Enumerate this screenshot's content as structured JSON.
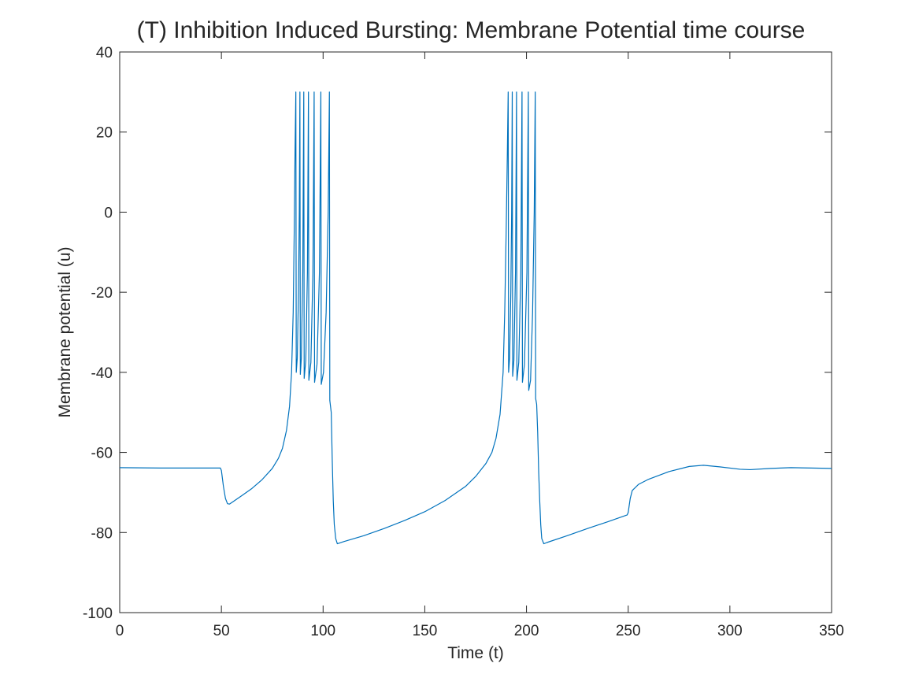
{
  "chart_data": {
    "type": "line",
    "title": "(T) Inhibition Induced Bursting: Membrane Potential time course",
    "xlabel": "Time (t)",
    "ylabel": "Membrane potential (u)",
    "xlim": [
      0,
      350
    ],
    "ylim": [
      -100,
      40
    ],
    "x_ticks": [
      0,
      50,
      100,
      150,
      200,
      250,
      300,
      350
    ],
    "y_ticks": [
      -100,
      -80,
      -60,
      -40,
      -20,
      0,
      20,
      40
    ],
    "grid": false,
    "legend": "none",
    "series": [
      {
        "color": "#0072BD",
        "points": [
          [
            0,
            -63.8
          ],
          [
            20,
            -63.9
          ],
          [
            40,
            -63.9
          ],
          [
            49.5,
            -63.9
          ],
          [
            50,
            -64.5
          ],
          [
            51,
            -68.5
          ],
          [
            52,
            -71.5
          ],
          [
            53,
            -72.8
          ],
          [
            54,
            -72.9
          ],
          [
            56,
            -72.2
          ],
          [
            60,
            -70.8
          ],
          [
            65,
            -69.0
          ],
          [
            70,
            -66.8
          ],
          [
            75,
            -64.0
          ],
          [
            78,
            -61.5
          ],
          [
            80,
            -59.0
          ],
          [
            82,
            -54.5
          ],
          [
            83.5,
            -48.5
          ],
          [
            84.5,
            -40.0
          ],
          [
            85.3,
            -25.0
          ],
          [
            85.8,
            -5.0
          ],
          [
            86.2,
            15.0
          ],
          [
            86.6,
            30.0
          ],
          [
            86.8,
            -40.0
          ],
          [
            87.3,
            -36.5
          ],
          [
            87.9,
            -20.0
          ],
          [
            88.3,
            0.0
          ],
          [
            88.6,
            30.0
          ],
          [
            88.8,
            -40.5
          ],
          [
            89.3,
            -36.5
          ],
          [
            90.0,
            -15.0
          ],
          [
            90.5,
            30.0
          ],
          [
            90.7,
            -41.5
          ],
          [
            91.5,
            -37.0
          ],
          [
            92.3,
            -15.0
          ],
          [
            92.8,
            30.0
          ],
          [
            93.0,
            -42.0
          ],
          [
            94.0,
            -37.5
          ],
          [
            95.0,
            -15.0
          ],
          [
            95.6,
            30.0
          ],
          [
            95.8,
            -42.5
          ],
          [
            97.0,
            -38.0
          ],
          [
            98.2,
            -15.0
          ],
          [
            98.9,
            30.0
          ],
          [
            99.1,
            -43.0
          ],
          [
            100.2,
            -40.0
          ],
          [
            101.5,
            -25.0
          ],
          [
            102.5,
            0.0
          ],
          [
            103.1,
            30.0
          ],
          [
            103.3,
            -47.0
          ],
          [
            104.0,
            -50.0
          ],
          [
            104.5,
            -62.0
          ],
          [
            105.0,
            -72.0
          ],
          [
            105.5,
            -78.0
          ],
          [
            106.2,
            -81.5
          ],
          [
            107,
            -82.8
          ],
          [
            110,
            -82.3
          ],
          [
            120,
            -80.8
          ],
          [
            130,
            -79.0
          ],
          [
            140,
            -77.0
          ],
          [
            150,
            -74.8
          ],
          [
            160,
            -72.0
          ],
          [
            170,
            -68.5
          ],
          [
            175,
            -66.0
          ],
          [
            180,
            -62.8
          ],
          [
            183,
            -60.0
          ],
          [
            185,
            -56.5
          ],
          [
            187,
            -50.5
          ],
          [
            188.5,
            -40.0
          ],
          [
            189.3,
            -25.0
          ],
          [
            190.0,
            -5.0
          ],
          [
            190.6,
            15.0
          ],
          [
            191.0,
            30.0
          ],
          [
            191.2,
            -40.0
          ],
          [
            191.7,
            -36.5
          ],
          [
            192.3,
            -20.0
          ],
          [
            192.7,
            0.0
          ],
          [
            193.0,
            30.0
          ],
          [
            193.2,
            -41.0
          ],
          [
            193.8,
            -37.0
          ],
          [
            194.6,
            -15.0
          ],
          [
            195.1,
            30.0
          ],
          [
            195.3,
            -42.0
          ],
          [
            196.2,
            -37.5
          ],
          [
            197.2,
            -15.0
          ],
          [
            197.8,
            30.0
          ],
          [
            198.0,
            -42.5
          ],
          [
            199.0,
            -38.0
          ],
          [
            200.2,
            -15.0
          ],
          [
            200.9,
            30.0
          ],
          [
            201.1,
            -44.5
          ],
          [
            202.0,
            -42.0
          ],
          [
            203.0,
            -25.0
          ],
          [
            203.8,
            0.0
          ],
          [
            204.3,
            30.0
          ],
          [
            204.5,
            -46.5
          ],
          [
            205.0,
            -48.0
          ],
          [
            205.5,
            -55.0
          ],
          [
            206.0,
            -65.0
          ],
          [
            206.5,
            -72.0
          ],
          [
            207.0,
            -78.0
          ],
          [
            207.5,
            -81.5
          ],
          [
            208.5,
            -82.8
          ],
          [
            210,
            -82.5
          ],
          [
            220,
            -80.8
          ],
          [
            230,
            -79.0
          ],
          [
            240,
            -77.3
          ],
          [
            249.5,
            -75.6
          ],
          [
            250,
            -75.0
          ],
          [
            251,
            -71.5
          ],
          [
            252,
            -69.5
          ],
          [
            255,
            -68.0
          ],
          [
            260,
            -66.7
          ],
          [
            270,
            -64.8
          ],
          [
            280,
            -63.5
          ],
          [
            287,
            -63.2
          ],
          [
            295,
            -63.6
          ],
          [
            305,
            -64.2
          ],
          [
            310,
            -64.3
          ],
          [
            320,
            -64.0
          ],
          [
            330,
            -63.8
          ],
          [
            340,
            -63.9
          ],
          [
            350,
            -64.0
          ]
        ]
      }
    ]
  }
}
